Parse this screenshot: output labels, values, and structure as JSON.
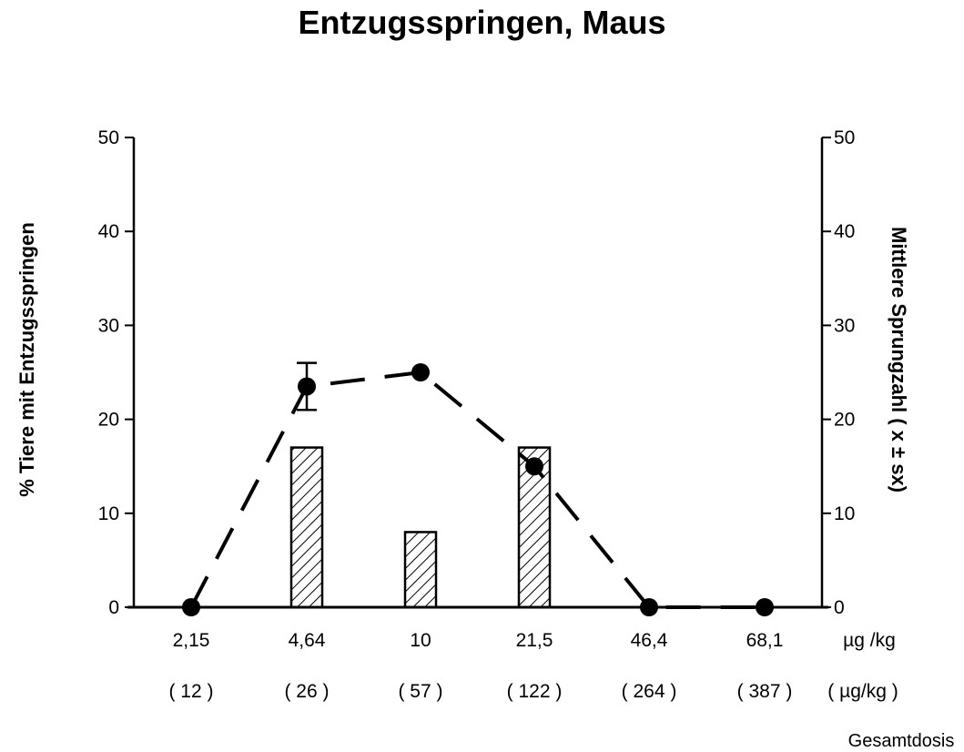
{
  "chart_data": {
    "type": "bar",
    "title": "Entzugsspringen, Maus",
    "categories": [
      "2,15",
      "4,64",
      "10",
      "21,5",
      "46,4",
      "68,1"
    ],
    "categories_total_dose": [
      "( 12 )",
      "( 26 )",
      "( 57 )",
      "( 122 )",
      "( 264 )",
      "( 387 )"
    ],
    "x_unit": "µg /kg",
    "x_unit_total": "( µg/kg )",
    "x_footer": "Gesamtdosis",
    "ylabel": "% Tiere mit Entzugsspringen",
    "ylabel_right": "Mittlere Sprungzahl ( x ± sx)",
    "ylim": [
      0,
      50
    ],
    "yticks": [
      0,
      10,
      20,
      30,
      40,
      50
    ],
    "grid": false,
    "series": [
      {
        "name": "% Tiere mit Entzugsspringen",
        "type": "bar",
        "pattern": "hatched",
        "axis": "left",
        "values": [
          0,
          17,
          8,
          17,
          0,
          0
        ]
      },
      {
        "name": "Mittlere Sprungzahl",
        "type": "line",
        "style": "dashed",
        "marker": "circle",
        "axis": "right",
        "values": [
          0,
          23.5,
          25,
          15,
          0,
          0
        ],
        "error": [
          0,
          2.5,
          0,
          0,
          0,
          0
        ]
      }
    ]
  },
  "labels": {
    "title": "Entzugsspringen, Maus",
    "ylabel_left": "% Tiere mit Entzugsspringen",
    "ylabel_right": "Mittlere Sprungzahl ( x ± sx)",
    "x_unit": "µg /kg",
    "x_unit_total": "( µg/kg )",
    "footer": "Gesamtdosis",
    "x": [
      "2,15",
      "4,64",
      "10",
      "21,5",
      "46,4",
      "68,1"
    ],
    "x_total": [
      "( 12 )",
      "( 26 )",
      "( 57 )",
      "( 122 )",
      "( 264 )",
      "( 387 )"
    ],
    "ticks": [
      "0",
      "10",
      "20",
      "30",
      "40",
      "50"
    ]
  }
}
